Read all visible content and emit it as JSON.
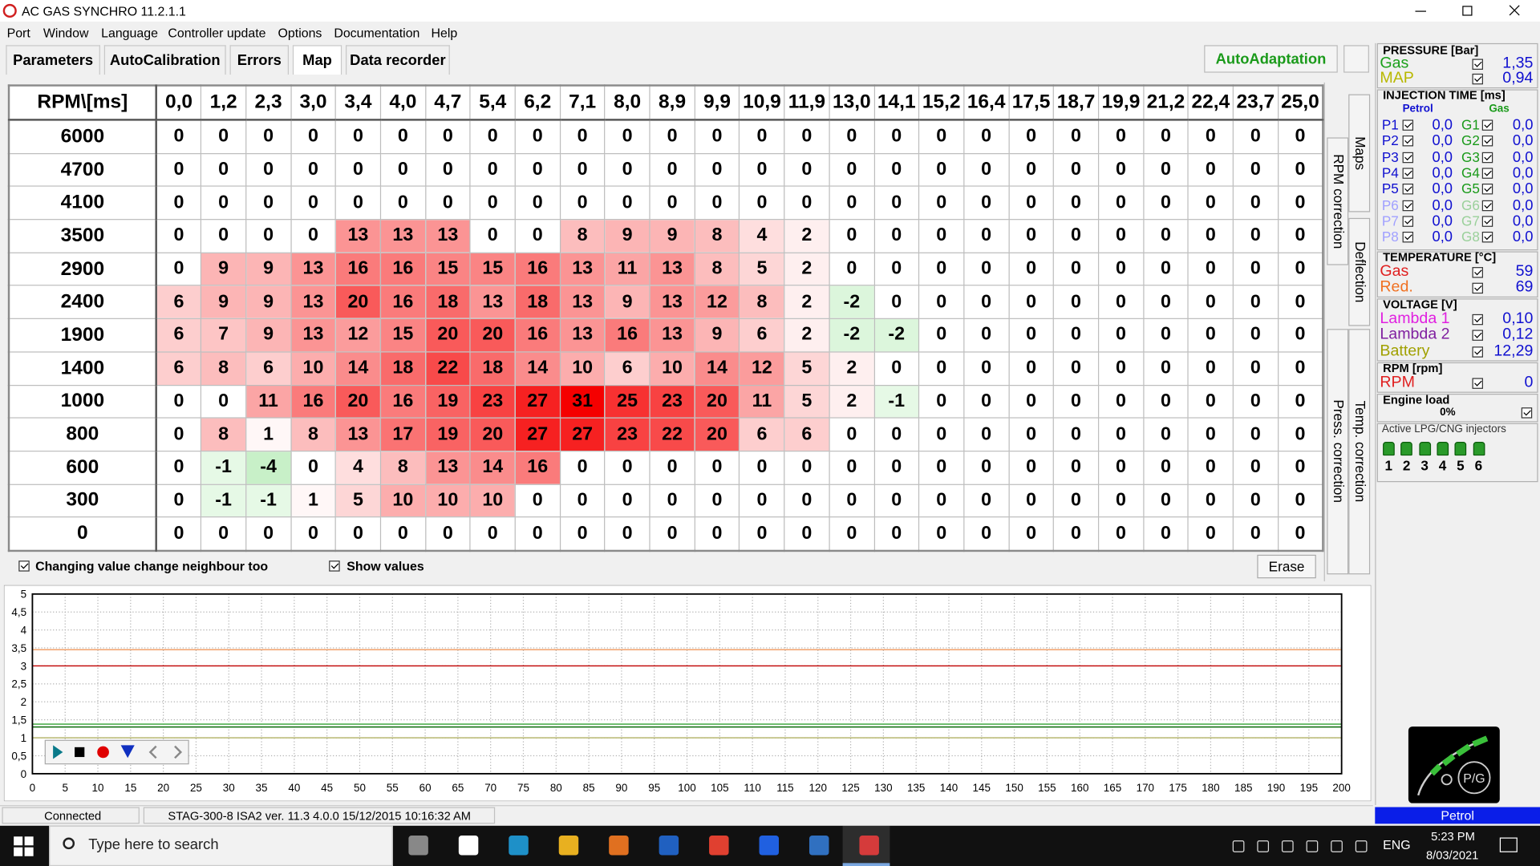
{
  "titlebar": {
    "title": "AC GAS SYNCHRO  11.2.1.1"
  },
  "menu": [
    "Port",
    "Window",
    "Language",
    "Controller update",
    "Options",
    "Documentation",
    "Help"
  ],
  "tabs": [
    "Parameters",
    "AutoCalibration",
    "Errors",
    "Map",
    "Data recorder"
  ],
  "autoadaptation": "AutoAdaptation",
  "map": {
    "corner": "RPM\\[ms]",
    "columns": [
      "0,0",
      "1,2",
      "2,3",
      "3,0",
      "3,4",
      "4,0",
      "4,7",
      "5,4",
      "6,2",
      "7,1",
      "8,0",
      "8,9",
      "9,9",
      "10,9",
      "11,9",
      "13,0",
      "14,1",
      "15,2",
      "16,4",
      "17,5",
      "18,7",
      "19,9",
      "21,2",
      "22,4",
      "23,7",
      "25,0"
    ],
    "rows": [
      {
        "rpm": 6000,
        "values": [
          0,
          0,
          0,
          0,
          0,
          0,
          0,
          0,
          0,
          0,
          0,
          0,
          0,
          0,
          0,
          0,
          0,
          0,
          0,
          0,
          0,
          0,
          0,
          0,
          0,
          0
        ]
      },
      {
        "rpm": 4700,
        "values": [
          0,
          0,
          0,
          0,
          0,
          0,
          0,
          0,
          0,
          0,
          0,
          0,
          0,
          0,
          0,
          0,
          0,
          0,
          0,
          0,
          0,
          0,
          0,
          0,
          0,
          0
        ]
      },
      {
        "rpm": 4100,
        "values": [
          0,
          0,
          0,
          0,
          0,
          0,
          0,
          0,
          0,
          0,
          0,
          0,
          0,
          0,
          0,
          0,
          0,
          0,
          0,
          0,
          0,
          0,
          0,
          0,
          0,
          0
        ]
      },
      {
        "rpm": 3500,
        "values": [
          0,
          0,
          0,
          0,
          13,
          13,
          13,
          0,
          0,
          8,
          9,
          9,
          8,
          4,
          2,
          0,
          0,
          0,
          0,
          0,
          0,
          0,
          0,
          0,
          0,
          0
        ]
      },
      {
        "rpm": 2900,
        "values": [
          0,
          9,
          9,
          13,
          16,
          16,
          15,
          15,
          16,
          13,
          11,
          13,
          8,
          5,
          2,
          0,
          0,
          0,
          0,
          0,
          0,
          0,
          0,
          0,
          0,
          0
        ]
      },
      {
        "rpm": 2400,
        "values": [
          6,
          9,
          9,
          13,
          20,
          16,
          18,
          13,
          18,
          13,
          9,
          13,
          12,
          8,
          2,
          -2,
          0,
          0,
          0,
          0,
          0,
          0,
          0,
          0,
          0,
          0
        ]
      },
      {
        "rpm": 1900,
        "values": [
          6,
          7,
          9,
          13,
          12,
          15,
          20,
          20,
          16,
          13,
          16,
          13,
          9,
          6,
          2,
          -2,
          -2,
          0,
          0,
          0,
          0,
          0,
          0,
          0,
          0,
          0
        ]
      },
      {
        "rpm": 1400,
        "values": [
          6,
          8,
          6,
          10,
          14,
          18,
          22,
          18,
          14,
          10,
          6,
          10,
          14,
          12,
          5,
          2,
          0,
          0,
          0,
          0,
          0,
          0,
          0,
          0,
          0,
          0
        ]
      },
      {
        "rpm": 1000,
        "values": [
          0,
          0,
          11,
          16,
          20,
          16,
          19,
          23,
          27,
          31,
          25,
          23,
          20,
          11,
          5,
          2,
          -1,
          0,
          0,
          0,
          0,
          0,
          0,
          0,
          0,
          0
        ]
      },
      {
        "rpm": 800,
        "values": [
          0,
          8,
          1,
          8,
          13,
          17,
          19,
          20,
          27,
          27,
          23,
          22,
          20,
          6,
          6,
          0,
          0,
          0,
          0,
          0,
          0,
          0,
          0,
          0,
          0,
          0
        ]
      },
      {
        "rpm": 600,
        "values": [
          0,
          -1,
          -4,
          0,
          4,
          8,
          13,
          14,
          16,
          0,
          0,
          0,
          0,
          0,
          0,
          0,
          0,
          0,
          0,
          0,
          0,
          0,
          0,
          0,
          0,
          0
        ]
      },
      {
        "rpm": 300,
        "values": [
          0,
          -1,
          -1,
          1,
          5,
          10,
          10,
          10,
          0,
          0,
          0,
          0,
          0,
          0,
          0,
          0,
          0,
          0,
          0,
          0,
          0,
          0,
          0,
          0,
          0,
          0
        ]
      },
      {
        "rpm": 0,
        "values": [
          0,
          0,
          0,
          0,
          0,
          0,
          0,
          0,
          0,
          0,
          0,
          0,
          0,
          0,
          0,
          0,
          0,
          0,
          0,
          0,
          0,
          0,
          0,
          0,
          0,
          0
        ]
      }
    ]
  },
  "side_tabs": [
    "Maps",
    "RPM correction",
    "Deflection",
    "Press. correction",
    "Temp. correction"
  ],
  "options": {
    "neighbour": "Changing value change neighbour too",
    "show_values": "Show values",
    "erase": "Erase"
  },
  "recorder": {
    "ylim": [
      0,
      5
    ],
    "yticks": [
      0,
      {
        "value": 0.5,
        "label": "0,5"
      },
      1,
      {
        "value": 1.5,
        "label": "1,5"
      },
      2,
      {
        "value": 2.5,
        "label": "2,5"
      },
      3,
      {
        "value": 3.5,
        "label": "3,5"
      },
      4,
      {
        "value": 4.5,
        "label": "4,5"
      },
      5
    ],
    "xlim": [
      0,
      200
    ],
    "xticks": [
      0,
      5,
      10,
      15,
      20,
      25,
      30,
      35,
      40,
      45,
      50,
      55,
      60,
      65,
      70,
      75,
      80,
      85,
      90,
      95,
      100,
      105,
      110,
      115,
      120,
      125,
      130,
      135,
      140,
      145,
      150,
      155,
      160,
      165,
      170,
      175,
      180,
      185,
      190,
      195,
      200
    ],
    "lines": [
      {
        "color": "#f2a06a",
        "value": 3.45
      },
      {
        "color": "#c00000",
        "value": 3.0
      },
      {
        "color": "#30a030",
        "value": 1.38
      },
      {
        "color": "#0a6a0a",
        "value": 1.3
      },
      {
        "color": "#b8b870",
        "value": 1.0
      }
    ]
  },
  "status": {
    "connection": "Connected",
    "device": "STAG-300-8 ISA2   ver. 11.3  4.0.0    15/12/2015 10:16:32 AM"
  },
  "panel": {
    "pressure": {
      "title": "PRESSURE [Bar]",
      "items": [
        {
          "label": "Gas",
          "value": "1,35",
          "color": "#1aa01a"
        },
        {
          "label": "MAP",
          "value": "0,94",
          "color": "#b8b800"
        }
      ]
    },
    "injection": {
      "title": "INJECTION TIME [ms]",
      "petrol": "Petrol",
      "gas": "Gas",
      "rows": [
        {
          "p": "P1",
          "pv": "0,0",
          "g": "G1",
          "gv": "0,0"
        },
        {
          "p": "P2",
          "pv": "0,0",
          "g": "G2",
          "gv": "0,0"
        },
        {
          "p": "P3",
          "pv": "0,0",
          "g": "G3",
          "gv": "0,0"
        },
        {
          "p": "P4",
          "pv": "0,0",
          "g": "G4",
          "gv": "0,0"
        },
        {
          "p": "P5",
          "pv": "0,0",
          "g": "G5",
          "gv": "0,0"
        },
        {
          "p": "P6",
          "pv": "0,0",
          "g": "G6",
          "gv": "0,0"
        },
        {
          "p": "P7",
          "pv": "0,0",
          "g": "G7",
          "gv": "0,0"
        },
        {
          "p": "P8",
          "pv": "0,0",
          "g": "G8",
          "gv": "0,0"
        }
      ]
    },
    "temperature": {
      "title": "TEMPERATURE [°C]",
      "items": [
        {
          "label": "Gas",
          "value": "59",
          "color": "#e02020"
        },
        {
          "label": "Red.",
          "value": "69",
          "color": "#f07020"
        }
      ]
    },
    "voltage": {
      "title": "VOLTAGE [V]",
      "items": [
        {
          "label": "Lambda 1",
          "value": "0,10",
          "color": "#e020e0"
        },
        {
          "label": "Lambda 2",
          "value": "0,12",
          "color": "#8020a0"
        },
        {
          "label": "Battery",
          "value": "12,29",
          "color": "#a0a000"
        }
      ]
    },
    "rpm": {
      "title": "RPM [rpm]",
      "items": [
        {
          "label": "RPM",
          "value": "0",
          "color": "#e02020"
        }
      ]
    },
    "load": {
      "title": "Engine load",
      "value": "0%"
    },
    "injectors": {
      "title": "Active LPG/CNG injectors",
      "labels": [
        1,
        2,
        3,
        4,
        5,
        6
      ]
    },
    "logo": "P/G",
    "mode": "Petrol"
  },
  "taskbar": {
    "search": "Type here to search",
    "lang": "ENG",
    "time": "5:23 PM",
    "date": "8/03/2021"
  }
}
